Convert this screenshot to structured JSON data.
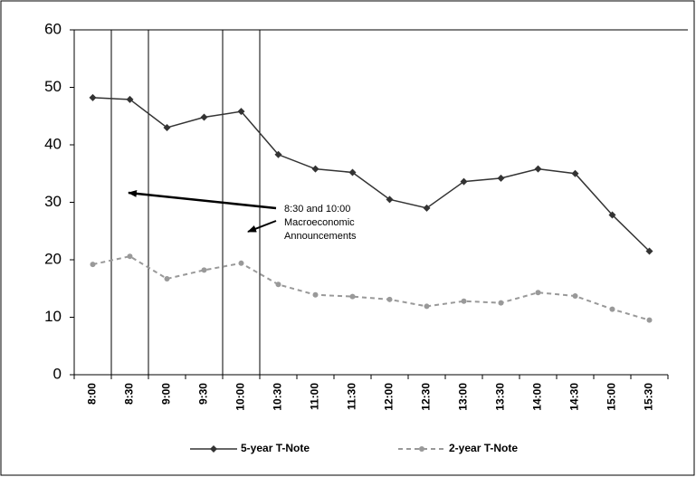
{
  "chart_data": {
    "type": "line",
    "categories": [
      "8:00",
      "8:30",
      "9:00",
      "9:30",
      "10:00",
      "10:30",
      "11:00",
      "11:30",
      "12:00",
      "12:30",
      "13:00",
      "13:30",
      "14:00",
      "14:30",
      "15:00",
      "15:30"
    ],
    "series": [
      {
        "name": "5-year T-Note",
        "color": "#333333",
        "values": [
          48.2,
          47.9,
          43,
          44.8,
          45.8,
          38.3,
          35.8,
          35.2,
          30.5,
          29,
          33.6,
          34.2,
          35.8,
          35,
          27.8,
          21.5
        ]
      },
      {
        "name": "2-year T-Note",
        "color": "#999999",
        "values": [
          19.2,
          20.6,
          16.7,
          18.2,
          19.4,
          15.7,
          13.9,
          13.6,
          13.1,
          11.9,
          12.8,
          12.5,
          14.3,
          13.7,
          11.4,
          9.5
        ]
      }
    ],
    "ylim": [
      0,
      60
    ],
    "yticks": [
      0,
      10,
      20,
      30,
      40,
      50,
      60
    ],
    "annotation": [
      "8:30 and 10:00",
      "Macroeconomic",
      "Announcements"
    ],
    "legend": "bottom"
  }
}
